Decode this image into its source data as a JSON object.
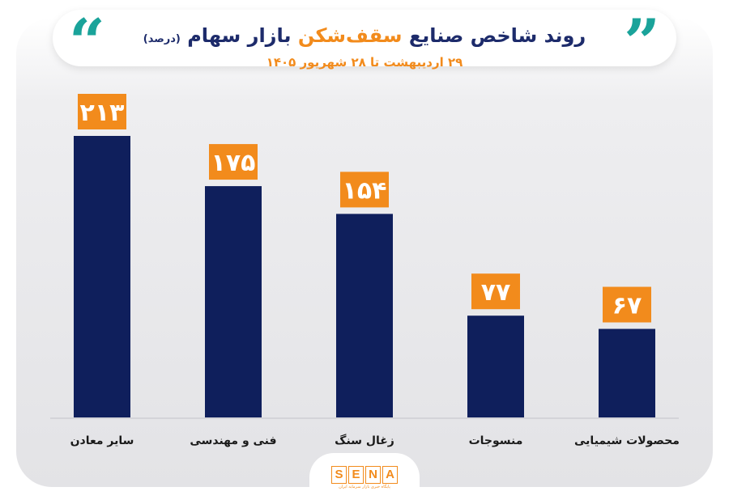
{
  "header": {
    "title_main": "روند شاخص صنایع",
    "title_accent": "سقف‌شکن",
    "title_end": "بازار سهام",
    "title_unit": "(درصد)",
    "subtitle": "۲۹ اردیبهشت تا ۲۸ شهریور ۱۴۰۵"
  },
  "chart_data": {
    "type": "bar",
    "categories": [
      "سایر معادن",
      "فنی و مهندسی",
      "زغال سنگ",
      "منسوجات",
      "محصولات شیمیایی"
    ],
    "values": [
      213,
      175,
      154,
      77,
      67
    ],
    "value_labels": [
      "۲۱۳",
      "۱۷۵",
      "۱۵۴",
      "۷۷",
      "۶۷"
    ],
    "title": "روند شاخص صنایع سقف‌شکن بازار سهام (درصد)",
    "ylim": [
      0,
      213
    ],
    "grid": false,
    "colors": {
      "bar": "#0f1f5c",
      "label_bg": "#f28b1c",
      "label_text": "#ffffff",
      "axis": "#cfcfd4"
    }
  },
  "footer": {
    "logo_letters": [
      "S",
      "E",
      "N",
      "A"
    ],
    "tagline": "پایگاه خبری بازار سرمایه ایران"
  }
}
